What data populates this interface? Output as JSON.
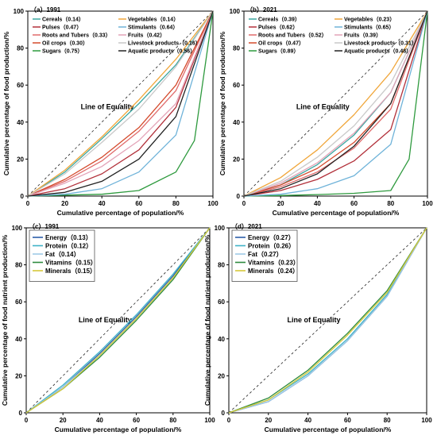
{
  "chart_data": [
    {
      "type": "line",
      "panel_label": "（a）1991",
      "xlabel": "Cumulative percentage of population/%",
      "ylabel": "Cumulative percentage of food production/%",
      "equality_label": "Line of Equality",
      "xlim": [
        0,
        100
      ],
      "ylim": [
        0,
        100
      ],
      "x_ticks": [
        "0",
        "20",
        "40",
        "60",
        "80",
        "100"
      ],
      "y_ticks": [
        "0",
        "20",
        "40",
        "60",
        "80",
        "100"
      ],
      "grid": false,
      "legend_position": "top",
      "series": [
        {
          "name": "Cereals（0.14）",
          "color": "#3ba7a0",
          "x": [
            0,
            20,
            40,
            60,
            80,
            100
          ],
          "y": [
            0,
            13,
            31,
            50,
            71,
            100
          ]
        },
        {
          "name": "Pulses（0.47）",
          "color": "#b2303a",
          "x": [
            0,
            20,
            40,
            60,
            80,
            100
          ],
          "y": [
            0,
            4,
            12,
            25,
            48,
            100
          ]
        },
        {
          "name": "Roots and Tubers（0.33）",
          "color": "#e06b6b",
          "x": [
            0,
            20,
            40,
            60,
            80,
            100
          ],
          "y": [
            0,
            8,
            19,
            35,
            57,
            100
          ]
        },
        {
          "name": "Oil crops（0.30）",
          "color": "#d44a2c",
          "x": [
            0,
            20,
            40,
            60,
            80,
            100
          ],
          "y": [
            0,
            9,
            21,
            37,
            60,
            100
          ]
        },
        {
          "name": "Sugars（0.75）",
          "color": "#2e9a3e",
          "x": [
            0,
            20,
            40,
            60,
            80,
            90,
            100
          ],
          "y": [
            0,
            0.5,
            1,
            3,
            13,
            30,
            100
          ]
        },
        {
          "name": "Vegetables（0.14）",
          "color": "#f0a63a",
          "x": [
            0,
            20,
            40,
            60,
            80,
            100
          ],
          "y": [
            0,
            14,
            32,
            52,
            74,
            100
          ]
        },
        {
          "name": "Stimulants（0.64）",
          "color": "#6fb3d9",
          "x": [
            0,
            20,
            40,
            60,
            80,
            100
          ],
          "y": [
            0,
            1,
            4,
            13,
            33,
            100
          ]
        },
        {
          "name": "Fruits（0.42）",
          "color": "#e3a4b8",
          "x": [
            0,
            20,
            40,
            60,
            80,
            100
          ],
          "y": [
            0,
            7,
            16,
            30,
            50,
            100
          ]
        },
        {
          "name": "Livestock products（0.16）",
          "color": "#c9c9c9",
          "x": [
            0,
            20,
            40,
            60,
            80,
            100
          ],
          "y": [
            0,
            12,
            29,
            47,
            70,
            100
          ]
        },
        {
          "name": "Aquatic products（0.56）",
          "color": "#222222",
          "x": [
            0,
            20,
            40,
            60,
            80,
            100
          ],
          "y": [
            0,
            2,
            8,
            20,
            43,
            100
          ]
        }
      ]
    },
    {
      "type": "line",
      "panel_label": "（b）2021",
      "xlabel": "Cumulative percentage of population/%",
      "ylabel": "Cumulative percentage of food production/%",
      "equality_label": "Line of Equality",
      "xlim": [
        0,
        100
      ],
      "ylim": [
        0,
        100
      ],
      "x_ticks": [
        "0",
        "20",
        "40",
        "60",
        "80",
        "100"
      ],
      "y_ticks": [
        "0",
        "20",
        "40",
        "60",
        "80",
        "100"
      ],
      "grid": false,
      "legend_position": "top",
      "series": [
        {
          "name": "Cereals（0.39）",
          "color": "#3ba7a0",
          "x": [
            0,
            20,
            40,
            60,
            80,
            100
          ],
          "y": [
            0,
            6,
            17,
            33,
            56,
            100
          ]
        },
        {
          "name": "Pulses（0.62）",
          "color": "#b2303a",
          "x": [
            0,
            20,
            40,
            60,
            80,
            100
          ],
          "y": [
            0,
            3,
            9,
            19,
            36,
            100
          ]
        },
        {
          "name": "Roots and Tubers（0.52）",
          "color": "#e06b6b",
          "x": [
            0,
            20,
            40,
            60,
            80,
            100
          ],
          "y": [
            0,
            5,
            13,
            26,
            47,
            100
          ]
        },
        {
          "name": "Oil crops（0.47）",
          "color": "#d44a2c",
          "x": [
            0,
            20,
            40,
            60,
            80,
            100
          ],
          "y": [
            0,
            6,
            15,
            29,
            50,
            100
          ]
        },
        {
          "name": "Sugars（0.89）",
          "color": "#2e9a3e",
          "x": [
            0,
            20,
            40,
            60,
            80,
            90,
            100
          ],
          "y": [
            0,
            0.3,
            0.8,
            1.5,
            3,
            20,
            100
          ]
        },
        {
          "name": "Vegetables（0.23）",
          "color": "#f0a63a",
          "x": [
            0,
            20,
            40,
            60,
            80,
            100
          ],
          "y": [
            0,
            10,
            25,
            44,
            67,
            100
          ]
        },
        {
          "name": "Stimulants（0.65）",
          "color": "#6fb3d9",
          "x": [
            0,
            20,
            40,
            60,
            80,
            100
          ],
          "y": [
            0,
            1,
            4,
            11,
            28,
            100
          ]
        },
        {
          "name": "Fruits（0.39）",
          "color": "#e3a4b8",
          "x": [
            0,
            20,
            40,
            60,
            80,
            100
          ],
          "y": [
            0,
            7,
            18,
            34,
            56,
            100
          ]
        },
        {
          "name": "Livestock products（0.31）",
          "color": "#c9c9c9",
          "x": [
            0,
            20,
            40,
            60,
            80,
            100
          ],
          "y": [
            0,
            8,
            21,
            38,
            61,
            100
          ]
        },
        {
          "name": "Aquatic products（0.48）",
          "color": "#222222",
          "x": [
            0,
            20,
            40,
            60,
            80,
            100
          ],
          "y": [
            0,
            4,
            12,
            27,
            50,
            100
          ]
        }
      ]
    },
    {
      "type": "line",
      "panel_label": "（c）1991",
      "xlabel": "Cumulative percentage of population/%",
      "ylabel": "Cumulative percentage of food nutrient production/%",
      "equality_label": "Line of Equality",
      "xlim": [
        0,
        100
      ],
      "ylim": [
        0,
        100
      ],
      "x_ticks": [
        "0",
        "20",
        "40",
        "60",
        "80",
        "100"
      ],
      "y_ticks": [
        "0",
        "20",
        "40",
        "60",
        "80",
        "100"
      ],
      "grid": false,
      "legend_position": "top-left",
      "series": [
        {
          "name": "Energy（0.13）",
          "color": "#2b5ea8",
          "x": [
            0,
            20,
            40,
            60,
            80,
            100
          ],
          "y": [
            0,
            14,
            32,
            52,
            74,
            100
          ]
        },
        {
          "name": "Protein（0.12）",
          "color": "#3fb3c8",
          "x": [
            0,
            20,
            40,
            60,
            80,
            100
          ],
          "y": [
            0,
            15,
            33,
            53,
            75,
            100
          ]
        },
        {
          "name": "Fat（0.14）",
          "color": "#9ec9e6",
          "x": [
            0,
            20,
            40,
            60,
            80,
            100
          ],
          "y": [
            0,
            14,
            31,
            51,
            73,
            100
          ]
        },
        {
          "name": "Vitamins（0.15）",
          "color": "#2e8b3e",
          "x": [
            0,
            20,
            40,
            60,
            80,
            100
          ],
          "y": [
            0,
            13,
            30,
            50,
            72,
            100
          ]
        },
        {
          "name": "Minerals（0.15）",
          "color": "#d6c83a",
          "x": [
            0,
            20,
            40,
            60,
            80,
            100
          ],
          "y": [
            0,
            13,
            31,
            51,
            73,
            100
          ]
        }
      ]
    },
    {
      "type": "line",
      "panel_label": "（d）2021",
      "xlabel": "Cumulative percentage of population/%",
      "ylabel": "Cumulative percentage of food nutrient production/%",
      "equality_label": "Line of Equality",
      "xlim": [
        0,
        100
      ],
      "ylim": [
        0,
        100
      ],
      "x_ticks": [
        "0",
        "20",
        "40",
        "60",
        "80",
        "100"
      ],
      "y_ticks": [
        "0",
        "20",
        "40",
        "60",
        "80",
        "100"
      ],
      "grid": false,
      "legend_position": "top-left",
      "series": [
        {
          "name": "Energy（0.27）",
          "color": "#2b5ea8",
          "x": [
            0,
            20,
            40,
            60,
            80,
            100
          ],
          "y": [
            0,
            6,
            20,
            39,
            63,
            100
          ]
        },
        {
          "name": "Protein（0.26）",
          "color": "#3fb3c8",
          "x": [
            0,
            20,
            40,
            60,
            80,
            100
          ],
          "y": [
            0,
            7,
            21,
            40,
            64,
            100
          ]
        },
        {
          "name": "Fat（0.27）",
          "color": "#9ec9e6",
          "x": [
            0,
            20,
            40,
            60,
            80,
            100
          ],
          "y": [
            0,
            6,
            20,
            39,
            63,
            100
          ]
        },
        {
          "name": "Vitamins（0.23）",
          "color": "#2e8b3e",
          "x": [
            0,
            20,
            40,
            60,
            80,
            100
          ],
          "y": [
            0,
            8,
            23,
            43,
            66,
            100
          ]
        },
        {
          "name": "Minerals（0.24）",
          "color": "#d6c83a",
          "x": [
            0,
            20,
            40,
            60,
            80,
            100
          ],
          "y": [
            0,
            7,
            22,
            42,
            65,
            100
          ]
        }
      ]
    }
  ]
}
